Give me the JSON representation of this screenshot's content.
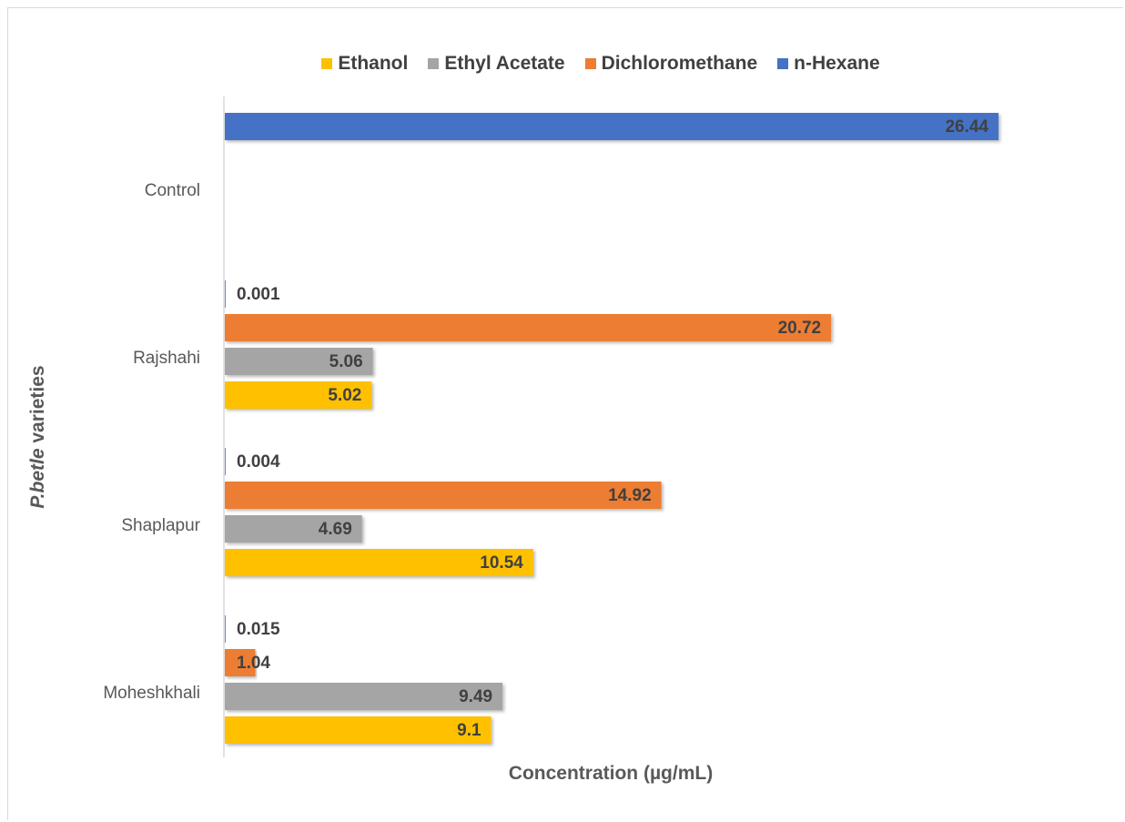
{
  "chart_data": {
    "type": "bar",
    "orientation": "horizontal",
    "title": "",
    "ylabel_italic": "P.betle",
    "ylabel_rest": " varieties",
    "xlabel": "Concentration (µg/mL)",
    "legend_position": "top",
    "grid": false,
    "categories": [
      "Control",
      "Rajshahi",
      "Shaplapur",
      "Moheshkhali"
    ],
    "xlim": [
      0,
      30
    ],
    "series": [
      {
        "name": "Ethanol",
        "color": "#FFC000",
        "values": [
          null,
          5.02,
          10.54,
          9.1
        ],
        "labels": [
          "",
          "5.02",
          "10.54",
          "9.1"
        ]
      },
      {
        "name": "Ethyl Acetate",
        "color": "#A5A5A5",
        "values": [
          null,
          5.06,
          4.69,
          9.49
        ],
        "labels": [
          "",
          "5.06",
          "4.69",
          "9.49"
        ]
      },
      {
        "name": "Dichloromethane",
        "color": "#ED7D31",
        "values": [
          null,
          20.72,
          14.92,
          1.04
        ],
        "labels": [
          "",
          "20.72",
          "14.92",
          "1.04"
        ]
      },
      {
        "name": "n-Hexane",
        "color": "#4472C4",
        "values": [
          26.44,
          0.001,
          0.004,
          0.015
        ],
        "labels": [
          "26.44",
          "0.001",
          "0.004",
          "0.015"
        ]
      }
    ]
  }
}
